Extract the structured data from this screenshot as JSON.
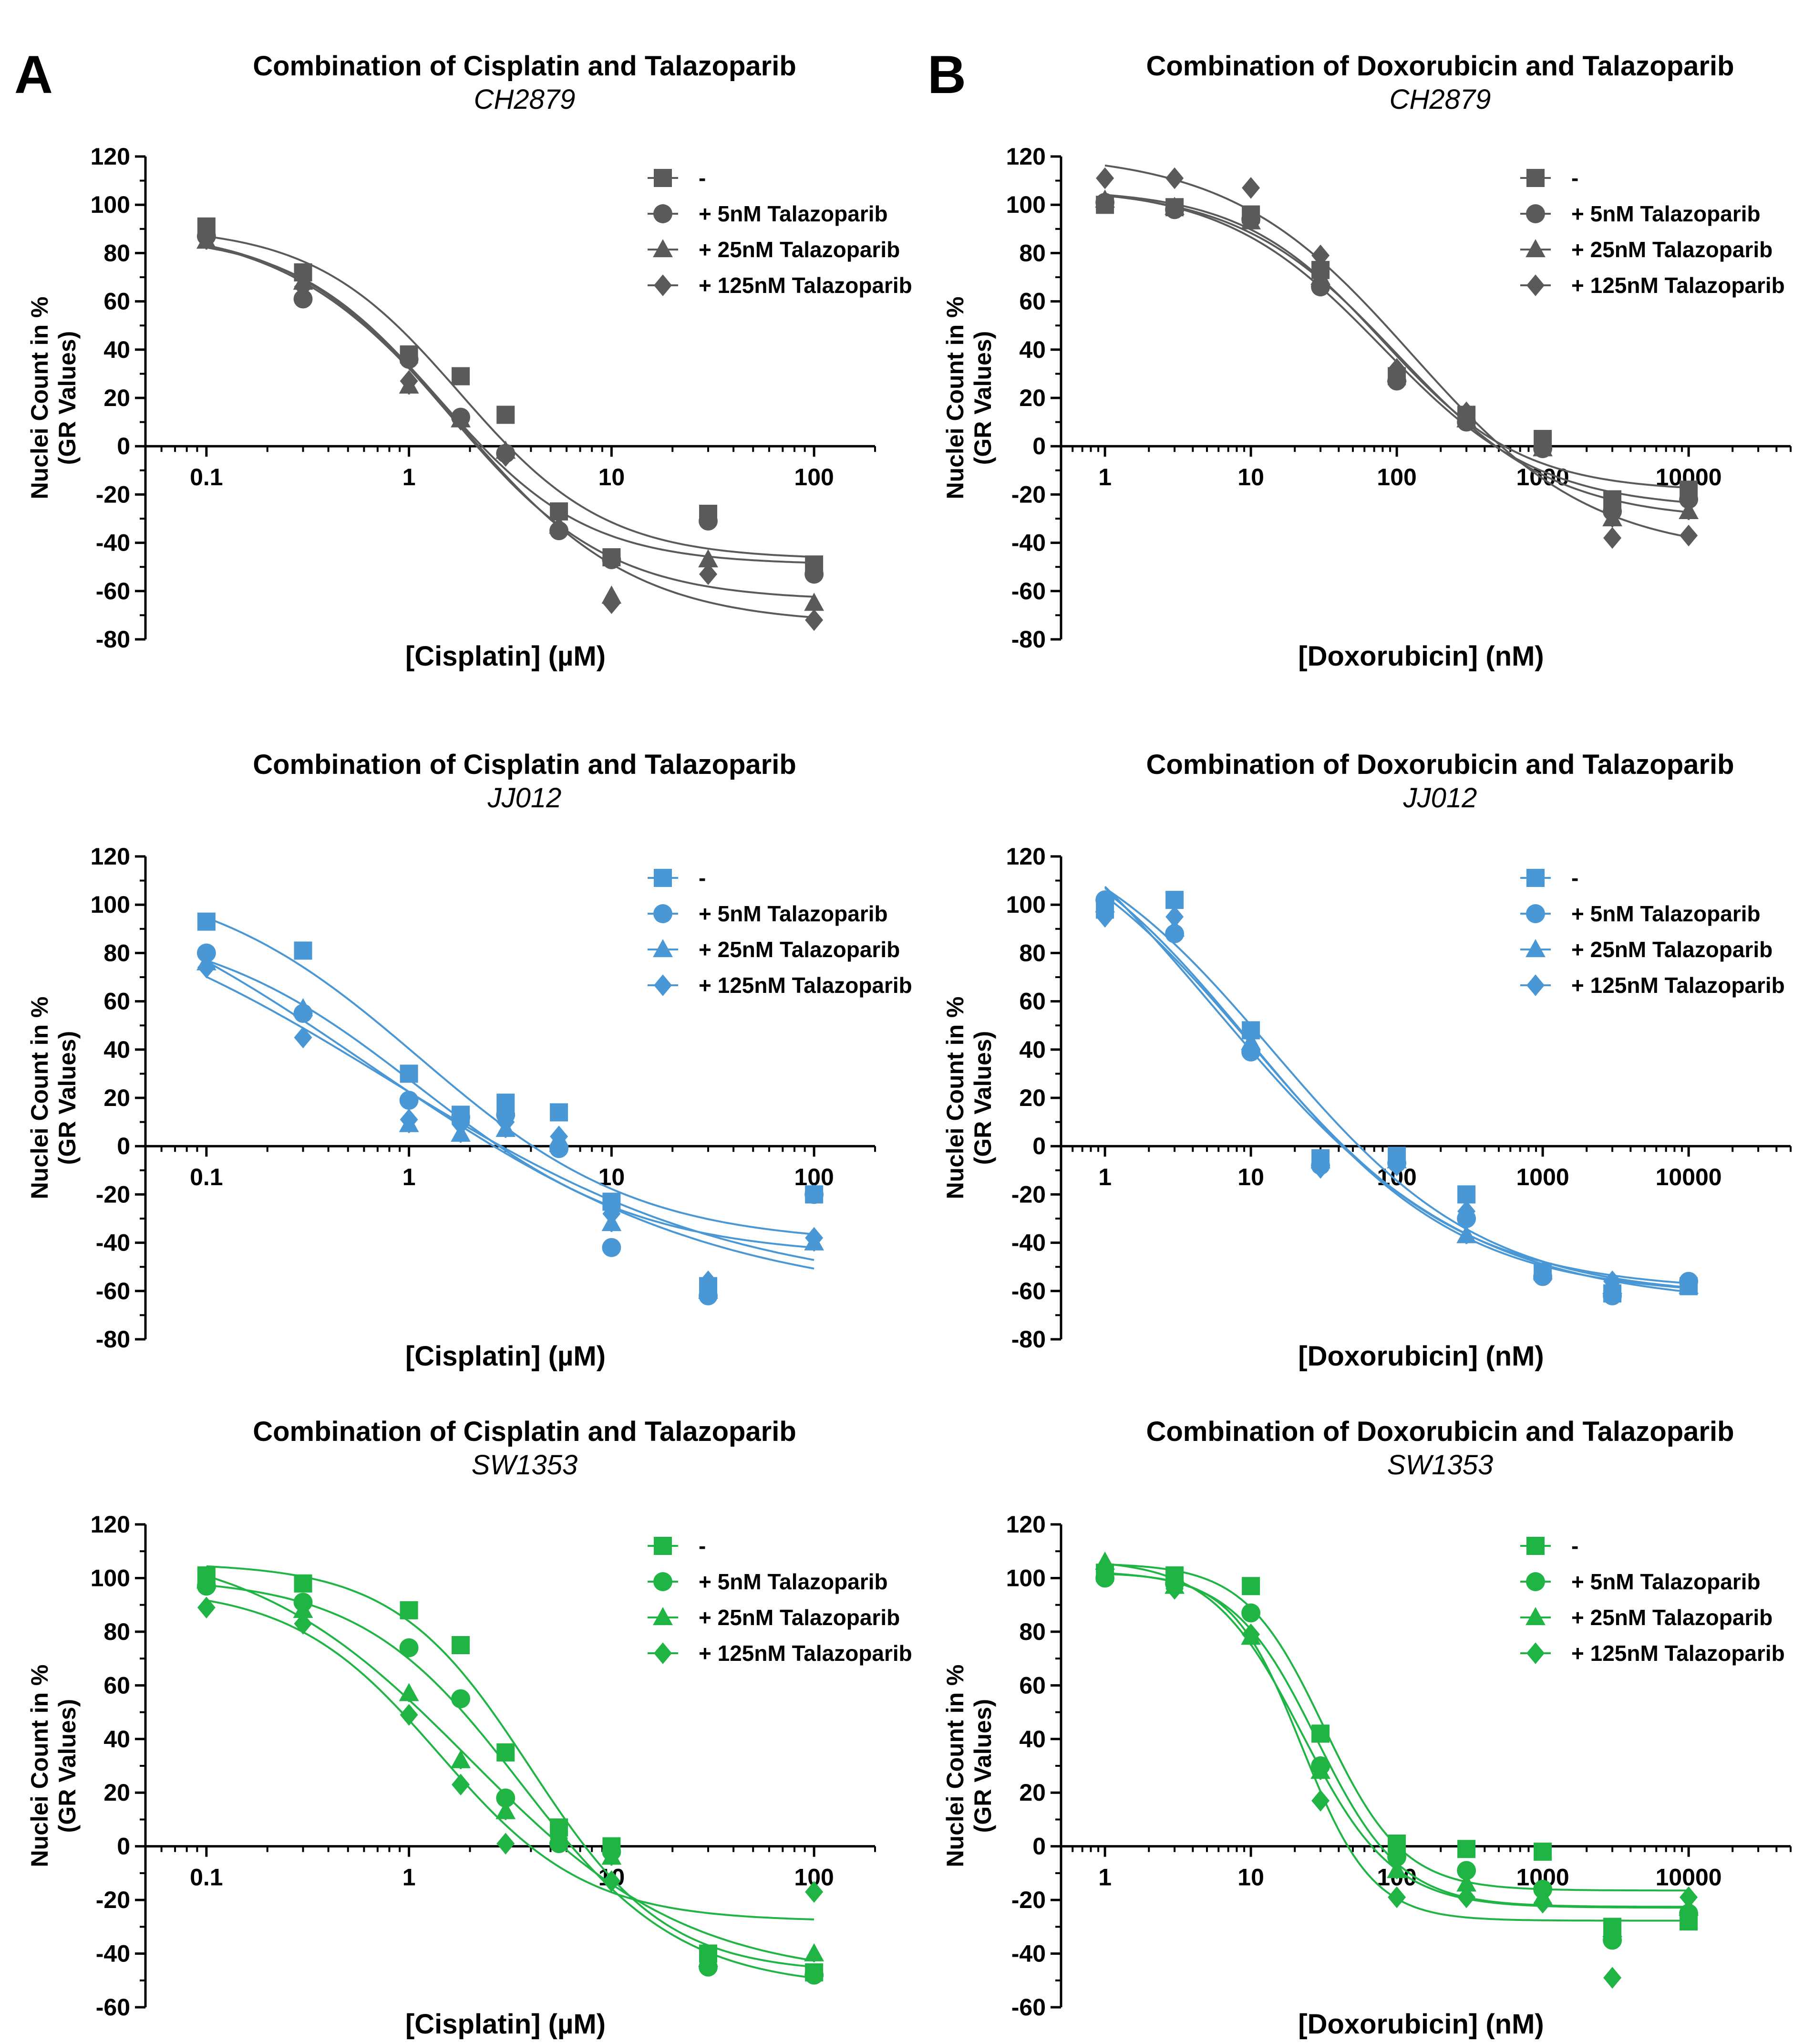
{
  "panel_labels": [
    "A",
    "B"
  ],
  "chart_data": [
    {
      "type": "scatter",
      "id": "cis-ch2879",
      "title": "Combination of Cisplatin and Talazoparib",
      "subtitle": "CH2879",
      "xlabel": "[Cisplatin] (µM)",
      "ylabel_line1": "Nuclei Count in %",
      "ylabel_line2": "(GR Values)",
      "xscale": "log",
      "xlim": [
        0.05,
        200
      ],
      "ylim": [
        -80,
        120
      ],
      "x_ticks": [
        "0.1",
        "1",
        "10",
        "100"
      ],
      "y_ticks": [
        "120",
        "100",
        "80",
        "60",
        "40",
        "20",
        "0",
        "-20",
        "-40",
        "-60",
        "-80"
      ],
      "legend_position": "top-right",
      "color": "#5a5a5a",
      "x": [
        0.1,
        0.3,
        1,
        1.8,
        3,
        5.5,
        10,
        30,
        100
      ],
      "series": [
        {
          "name": "-",
          "marker": "square",
          "values": [
            91,
            72,
            38,
            29,
            13,
            -27,
            -46,
            -28,
            -49
          ]
        },
        {
          "name": "+ 5nM Talazoparib",
          "marker": "circle",
          "values": [
            87,
            61,
            36,
            12,
            -3,
            -35,
            -47,
            -31,
            -53
          ]
        },
        {
          "name": "+ 25nM Talazoparib",
          "marker": "triangle",
          "values": [
            85,
            68,
            25,
            11,
            -2,
            -33,
            -62,
            -47,
            -65
          ]
        },
        {
          "name": "+ 125nM Talazoparib",
          "marker": "diamond",
          "values": [
            86,
            66,
            27,
            11,
            -4,
            -34,
            -65,
            -53,
            -72
          ]
        }
      ]
    },
    {
      "type": "scatter",
      "id": "dox-ch2879",
      "title": "Combination of Doxorubicin and Talazoparib",
      "subtitle": "CH2879",
      "xlabel": "[Doxorubicin] (nM)",
      "ylabel_line1": "Nuclei Count in %",
      "ylabel_line2": "(GR Values)",
      "xscale": "log",
      "xlim": [
        0.5,
        50000
      ],
      "ylim": [
        -80,
        120
      ],
      "x_ticks": [
        "1",
        "10",
        "100",
        "1000",
        "10000"
      ],
      "y_ticks": [
        "120",
        "100",
        "80",
        "60",
        "40",
        "20",
        "0",
        "-20",
        "-40",
        "-60",
        "-80"
      ],
      "legend_position": "top-right",
      "color": "#5a5a5a",
      "x": [
        1,
        3,
        10,
        30,
        100,
        300,
        1000,
        3000,
        10000
      ],
      "series": [
        {
          "name": "-",
          "marker": "square",
          "values": [
            100,
            99,
            96,
            73,
            29,
            13,
            3,
            -22,
            -18
          ]
        },
        {
          "name": "+ 5nM Talazoparib",
          "marker": "circle",
          "values": [
            101,
            98,
            94,
            66,
            27,
            10,
            -1,
            -27,
            -22
          ]
        },
        {
          "name": "+ 25nM Talazoparib",
          "marker": "triangle",
          "values": [
            102,
            99,
            93,
            70,
            30,
            11,
            -1,
            -30,
            -27
          ]
        },
        {
          "name": "+ 125nM Talazoparib",
          "marker": "diamond",
          "values": [
            111,
            111,
            107,
            79,
            32,
            14,
            1,
            -38,
            -37
          ]
        }
      ]
    },
    {
      "type": "scatter",
      "id": "cis-jj012",
      "title": "Combination of Cisplatin and Talazoparib",
      "subtitle": "JJ012",
      "xlabel": "[Cisplatin] (µM)",
      "ylabel_line1": "Nuclei Count in %",
      "ylabel_line2": "(GR Values)",
      "xscale": "log",
      "xlim": [
        0.05,
        200
      ],
      "ylim": [
        -80,
        120
      ],
      "x_ticks": [
        "0.1",
        "1",
        "10",
        "100"
      ],
      "y_ticks": [
        "120",
        "100",
        "80",
        "60",
        "40",
        "20",
        "0",
        "-20",
        "-40",
        "-60",
        "-80"
      ],
      "legend_position": "top-right",
      "color": "#4a97d6",
      "x": [
        0.1,
        0.3,
        1,
        1.8,
        3,
        5.5,
        10,
        30,
        100
      ],
      "series": [
        {
          "name": "-",
          "marker": "square",
          "values": [
            93,
            81,
            30,
            13,
            18,
            14,
            -23,
            -58,
            -20
          ]
        },
        {
          "name": "+ 5nM Talazoparib",
          "marker": "circle",
          "values": [
            80,
            55,
            19,
            12,
            13,
            -1,
            -42,
            -62,
            -20
          ]
        },
        {
          "name": "+ 25nM Talazoparib",
          "marker": "triangle",
          "values": [
            76,
            57,
            9,
            5,
            7,
            3,
            -32,
            -60,
            -40
          ]
        },
        {
          "name": "+ 125nM Talazoparib",
          "marker": "diamond",
          "values": [
            74,
            45,
            11,
            9,
            10,
            4,
            -28,
            -56,
            -38
          ]
        }
      ]
    },
    {
      "type": "scatter",
      "id": "dox-jj012",
      "title": "Combination of Doxorubicin and Talazoparib",
      "subtitle": "JJ012",
      "xlabel": "[Doxorubicin] (nM)",
      "ylabel_line1": "Nuclei Count in %",
      "ylabel_line2": "(GR Values)",
      "xscale": "log",
      "xlim": [
        0.5,
        50000
      ],
      "ylim": [
        -80,
        120
      ],
      "x_ticks": [
        "1",
        "10",
        "100",
        "1000",
        "10000"
      ],
      "y_ticks": [
        "120",
        "100",
        "80",
        "60",
        "40",
        "20",
        "0",
        "-20",
        "-40",
        "-60",
        "-80"
      ],
      "legend_position": "top-right",
      "color": "#4a97d6",
      "x": [
        1,
        3,
        10,
        30,
        100,
        300,
        1000,
        3000,
        10000
      ],
      "series": [
        {
          "name": "-",
          "marker": "square",
          "values": [
            98,
            102,
            48,
            -5,
            -4,
            -20,
            -52,
            -61,
            -58
          ]
        },
        {
          "name": "+ 5nM Talazoparib",
          "marker": "circle",
          "values": [
            102,
            88,
            39,
            -8,
            -7,
            -30,
            -54,
            -62,
            -56
          ]
        },
        {
          "name": "+ 25nM Talazoparib",
          "marker": "triangle",
          "values": [
            100,
            90,
            43,
            -6,
            -6,
            -37,
            -52,
            -58,
            -58
          ]
        },
        {
          "name": "+ 125nM Talazoparib",
          "marker": "diamond",
          "values": [
            95,
            95,
            40,
            -9,
            -8,
            -27,
            -53,
            -56,
            -57
          ]
        }
      ]
    },
    {
      "type": "scatter",
      "id": "cis-sw1353",
      "title": "Combination of Cisplatin and Talazoparib",
      "subtitle": "SW1353",
      "xlabel": "[Cisplatin] (µM)",
      "ylabel_line1": "Nuclei Count in %",
      "ylabel_line2": "(GR Values)",
      "xscale": "log",
      "xlim": [
        0.05,
        200
      ],
      "ylim": [
        -60,
        120
      ],
      "x_ticks": [
        "0.1",
        "1",
        "10",
        "100"
      ],
      "y_ticks": [
        "120",
        "100",
        "80",
        "60",
        "40",
        "20",
        "0",
        "-20",
        "-40",
        "-60"
      ],
      "legend_position": "top-right",
      "color": "#1fb444",
      "x": [
        0.1,
        0.3,
        1,
        1.8,
        3,
        5.5,
        10,
        30,
        100
      ],
      "series": [
        {
          "name": "-",
          "marker": "square",
          "values": [
            101,
            98,
            88,
            75,
            35,
            7,
            0,
            -40,
            -47
          ]
        },
        {
          "name": "+ 5nM Talazoparib",
          "marker": "circle",
          "values": [
            97,
            91,
            74,
            55,
            18,
            1,
            -2,
            -45,
            -48
          ]
        },
        {
          "name": "+ 25nM Talazoparib",
          "marker": "triangle",
          "values": [
            99,
            88,
            57,
            32,
            13,
            4,
            -4,
            -42,
            -40
          ]
        },
        {
          "name": "+ 125nM Talazoparib",
          "marker": "diamond",
          "values": [
            89,
            83,
            49,
            23,
            1,
            3,
            -13,
            -43,
            -17
          ]
        }
      ]
    },
    {
      "type": "scatter",
      "id": "dox-sw1353",
      "title": "Combination of Doxorubicin and Talazoparib",
      "subtitle": "SW1353",
      "xlabel": "[Doxorubicin] (nM)",
      "ylabel_line1": "Nuclei Count in %",
      "ylabel_line2": "(GR Values)",
      "xscale": "log",
      "xlim": [
        0.5,
        50000
      ],
      "ylim": [
        -60,
        120
      ],
      "x_ticks": [
        "1",
        "10",
        "100",
        "1000",
        "10000"
      ],
      "y_ticks": [
        "120",
        "100",
        "80",
        "60",
        "40",
        "20",
        "0",
        "-20",
        "-40",
        "-60"
      ],
      "legend_position": "top-right",
      "color": "#1fb444",
      "x": [
        1,
        3,
        10,
        30,
        100,
        300,
        1000,
        3000,
        10000
      ],
      "series": [
        {
          "name": "-",
          "marker": "square",
          "values": [
            102,
            101,
            97,
            42,
            1,
            -1,
            -2,
            -30,
            -28
          ]
        },
        {
          "name": "+ 5nM Talazoparib",
          "marker": "circle",
          "values": [
            100,
            98,
            87,
            30,
            -4,
            -9,
            -16,
            -35,
            -25
          ]
        },
        {
          "name": "+ 25nM Talazoparib",
          "marker": "triangle",
          "values": [
            106,
            97,
            78,
            28,
            -9,
            -14,
            -19,
            -31,
            -23
          ]
        },
        {
          "name": "+ 125nM Talazoparib",
          "marker": "diamond",
          "values": [
            104,
            96,
            79,
            17,
            -19,
            -19,
            -21,
            -49,
            -19
          ]
        }
      ]
    }
  ]
}
